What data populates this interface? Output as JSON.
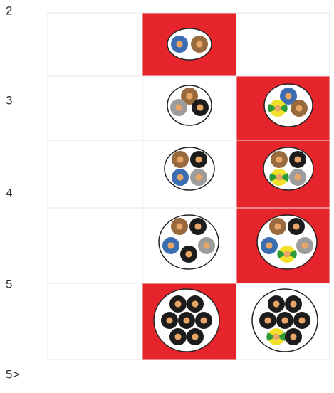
{
  "row_labels": [
    "2",
    "3",
    "4",
    "5",
    "5>"
  ]
}
